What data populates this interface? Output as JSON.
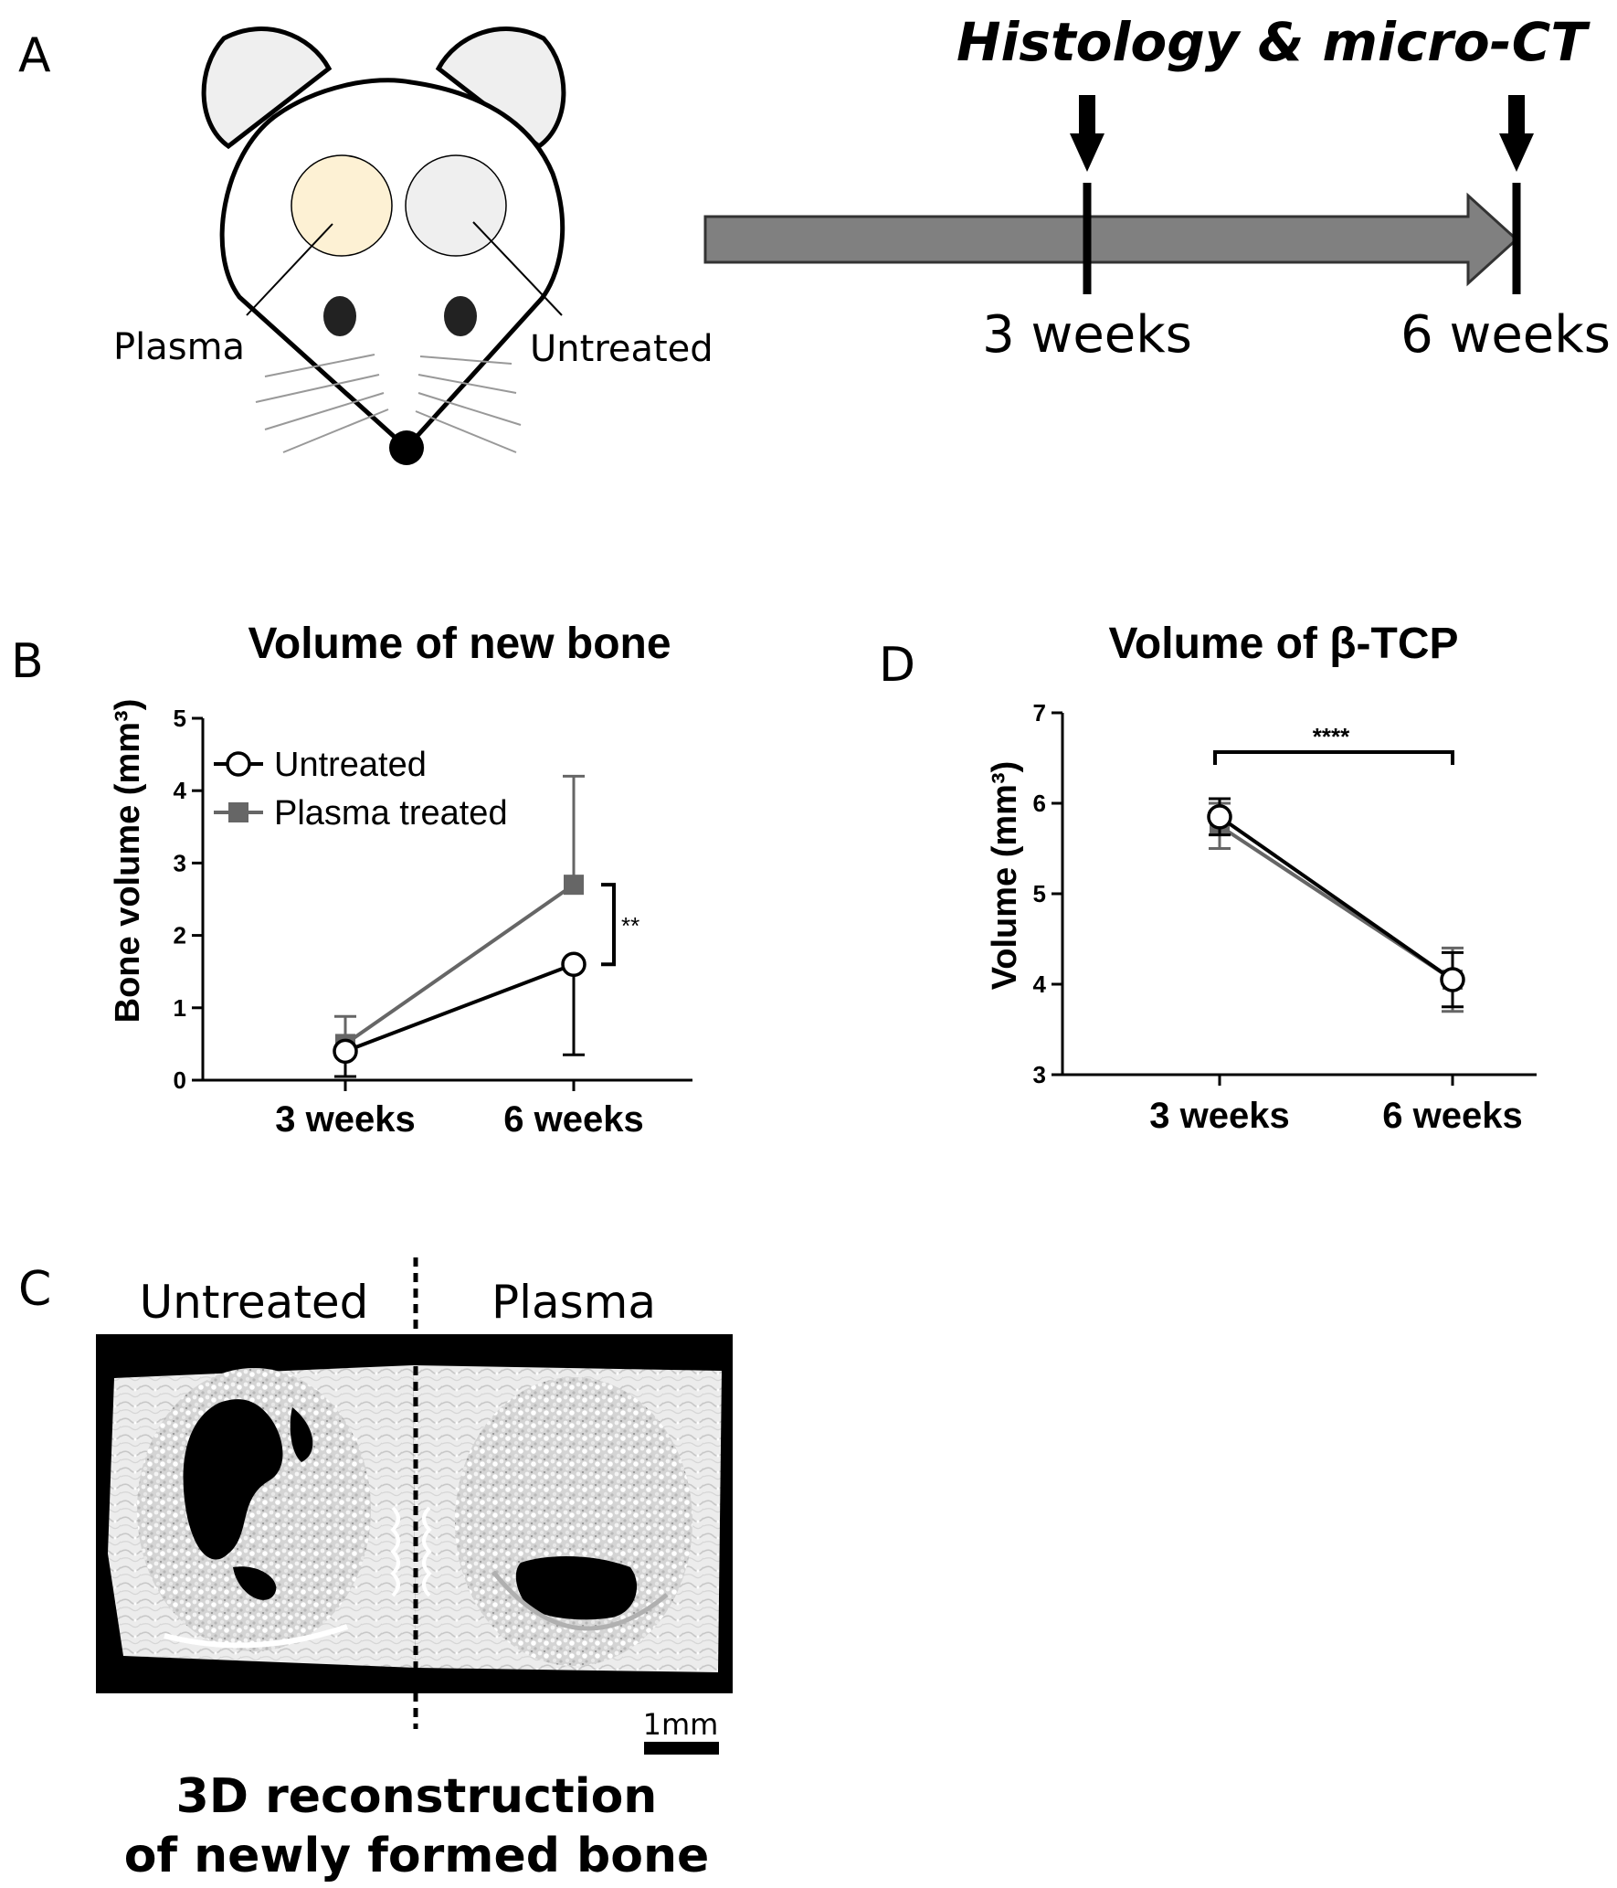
{
  "panel_labels": {
    "a": "A",
    "b": "B",
    "c": "C",
    "d": "D"
  },
  "panel_a": {
    "header": "Histology & micro-CT",
    "mouse_labels": {
      "plasma": "Plasma",
      "untreated": "Untreated"
    },
    "timeline": {
      "t1": "3 weeks",
      "t2": "6 weeks"
    }
  },
  "panel_c": {
    "label_left": "Untreated",
    "label_right": "Plasma",
    "scale_bar": "1mm",
    "caption_line1": "3D reconstruction",
    "caption_line2": "of newly formed bone"
  },
  "colors": {
    "untreated": "#000000",
    "plasma_treated": "#666666",
    "plasma_spot": "#fdf1d4",
    "untreated_spot": "#efefef",
    "timeline_arrow": "#808080"
  },
  "chart_data": [
    {
      "id": "B",
      "type": "line",
      "title": "Volume of new bone",
      "xlabel": "",
      "ylabel": "Bone volume (mm³)",
      "categories": [
        "3 weeks",
        "6 weeks"
      ],
      "ylim": [
        0,
        5
      ],
      "yticks": [
        "0",
        "1",
        "2",
        "3",
        "4",
        "5"
      ],
      "legend_position": "top-left",
      "series": [
        {
          "name": "Untreated",
          "marker": "open-circle",
          "values": [
            0.4,
            1.6
          ],
          "err_upper": [
            null,
            null
          ],
          "err_lower": [
            0.35,
            1.25
          ]
        },
        {
          "name": "Plasma treated",
          "marker": "filled-square",
          "values": [
            0.5,
            2.7
          ],
          "err_upper": [
            0.38,
            1.5
          ],
          "err_lower": [
            null,
            null
          ]
        }
      ],
      "significance": "**"
    },
    {
      "id": "D",
      "type": "line",
      "title": "Volume of β-TCP",
      "xlabel": "",
      "ylabel": "Volume (mm³)",
      "categories": [
        "3 weeks",
        "6 weeks"
      ],
      "ylim": [
        3,
        7
      ],
      "yticks": [
        "3",
        "4",
        "5",
        "6",
        "7"
      ],
      "series": [
        {
          "marker": "open-circle",
          "values": [
            5.85,
            4.05
          ],
          "err": [
            0.2,
            0.3
          ]
        },
        {
          "marker": "filled-square",
          "values": [
            5.75,
            4.05
          ],
          "err": [
            0.25,
            0.35
          ]
        }
      ],
      "significance": "****"
    }
  ]
}
